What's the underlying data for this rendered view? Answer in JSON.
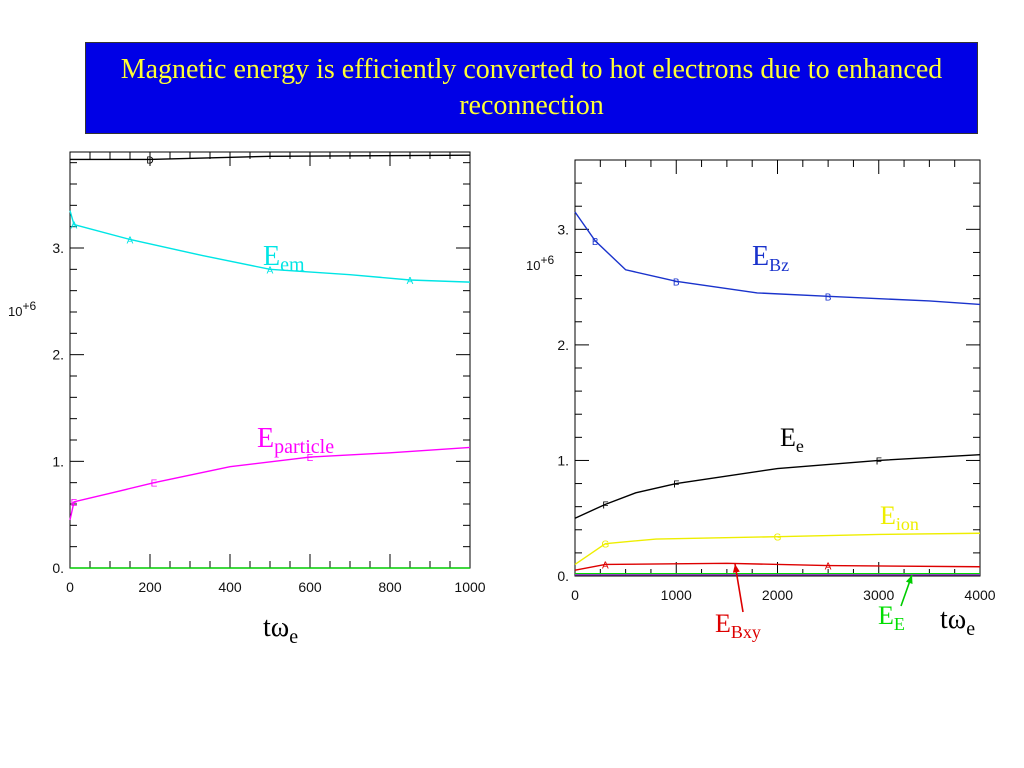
{
  "slide": {
    "title": "Magnetic energy is efficiently converted to hot electrons due to enhanced reconnection"
  },
  "chart_data": [
    {
      "type": "line",
      "x_tick_labels": [
        "0",
        "200",
        "400",
        "600",
        "800",
        "1000"
      ],
      "y_tick_labels": [
        "0.",
        "1.",
        "2.",
        "3."
      ],
      "y_exponent": "10+6",
      "xlim": [
        0,
        1000
      ],
      "ylim": [
        0,
        3.9
      ],
      "x_axis_label": {
        "main": "tω",
        "sub": "e"
      },
      "series": [
        {
          "id": "total",
          "color": "#000000",
          "marker": "D",
          "points": [
            [
              0,
              3.83
            ],
            [
              200,
              3.83
            ],
            [
              500,
              3.86
            ],
            [
              1000,
              3.87
            ]
          ]
        },
        {
          "id": "em",
          "name": "E",
          "name_sub": "em",
          "color": "#00e5e5",
          "marker": "A",
          "points": [
            [
              0,
              3.35
            ],
            [
              10,
              3.22
            ],
            [
              50,
              3.18
            ],
            [
              150,
              3.08
            ],
            [
              330,
              2.93
            ],
            [
              500,
              2.8
            ],
            [
              700,
              2.75
            ],
            [
              850,
              2.7
            ],
            [
              1000,
              2.68
            ]
          ]
        },
        {
          "id": "particle",
          "name": "E",
          "name_sub": "particle",
          "color": "#ff00ff",
          "marker": "E",
          "points": [
            [
              0,
              0.45
            ],
            [
              10,
              0.62
            ],
            [
              100,
              0.7
            ],
            [
              210,
              0.8
            ],
            [
              400,
              0.95
            ],
            [
              600,
              1.04
            ],
            [
              800,
              1.08
            ],
            [
              1000,
              1.13
            ]
          ]
        },
        {
          "id": "baseline",
          "color": "#00cc00",
          "marker": "D",
          "points": [
            [
              0,
              0.0
            ],
            [
              1000,
              0.0
            ]
          ]
        }
      ]
    },
    {
      "type": "line",
      "x_tick_labels": [
        "0",
        "1000",
        "2000",
        "3000",
        "4000"
      ],
      "y_tick_labels": [
        "0.",
        "1.",
        "2.",
        "3."
      ],
      "y_exponent": "10+6",
      "xlim": [
        0,
        4000
      ],
      "ylim": [
        0,
        3.6
      ],
      "x_axis_label": {
        "main": "tω",
        "sub": "e"
      },
      "series": [
        {
          "id": "bz",
          "name": "E",
          "name_sub": "Bz",
          "color": "#1a33cc",
          "marker": "B",
          "points": [
            [
              0,
              3.15
            ],
            [
              200,
              2.9
            ],
            [
              500,
              2.65
            ],
            [
              1000,
              2.55
            ],
            [
              1800,
              2.45
            ],
            [
              2500,
              2.42
            ],
            [
              3500,
              2.38
            ],
            [
              4000,
              2.35
            ]
          ]
        },
        {
          "id": "e",
          "name": "E",
          "name_sub": "e",
          "color": "#000000",
          "marker": "F",
          "points": [
            [
              0,
              0.5
            ],
            [
              300,
              0.62
            ],
            [
              600,
              0.72
            ],
            [
              1000,
              0.8
            ],
            [
              2000,
              0.93
            ],
            [
              3000,
              1.0
            ],
            [
              4000,
              1.05
            ]
          ]
        },
        {
          "id": "ion",
          "name": "E",
          "name_sub": "ion",
          "color": "#eeee00",
          "marker": "G",
          "points": [
            [
              0,
              0.1
            ],
            [
              300,
              0.28
            ],
            [
              800,
              0.32
            ],
            [
              2000,
              0.34
            ],
            [
              3000,
              0.36
            ],
            [
              4000,
              0.37
            ]
          ]
        },
        {
          "id": "bxy",
          "name": "E",
          "name_sub": "Bxy",
          "color": "#dd0000",
          "marker": "A",
          "points": [
            [
              0,
              0.05
            ],
            [
              300,
              0.1
            ],
            [
              1500,
              0.11
            ],
            [
              2500,
              0.09
            ],
            [
              4000,
              0.08
            ]
          ]
        },
        {
          "id": "ee",
          "name": "E",
          "name_sub": "E",
          "color": "#00dd00",
          "marker": "D",
          "points": [
            [
              0,
              0.02
            ],
            [
              4000,
              0.02
            ]
          ]
        },
        {
          "id": "other",
          "color": "#9933cc",
          "marker": "D",
          "points": [
            [
              0,
              0.01
            ],
            [
              4000,
              0.01
            ]
          ]
        }
      ]
    }
  ]
}
